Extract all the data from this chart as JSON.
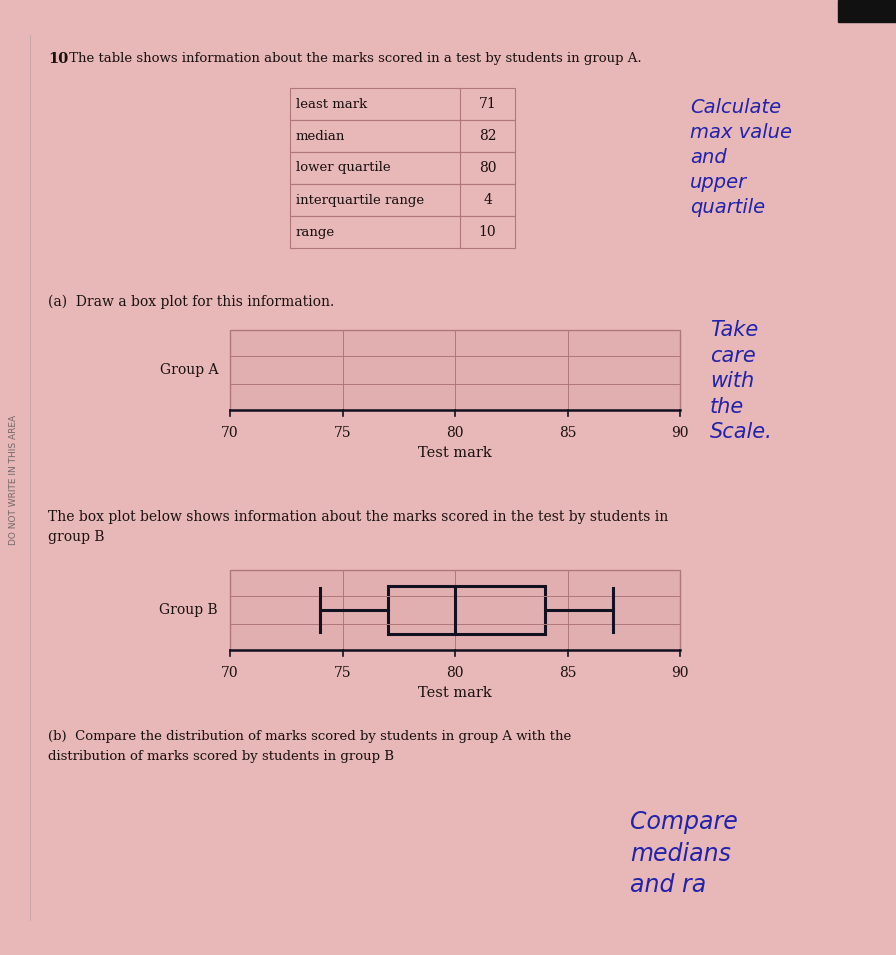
{
  "page_bg": "#e8b8b8",
  "question_number": "10",
  "question_text": " The table shows information about the marks scored in a test by students in group A.",
  "table_data": {
    "rows": [
      [
        "least mark",
        "71"
      ],
      [
        "median",
        "82"
      ],
      [
        "lower quartile",
        "80"
      ],
      [
        "interquartile range",
        "4"
      ],
      [
        "range",
        "10"
      ]
    ]
  },
  "handwritten_note1": "Calculate\nmax value\nand\nupper\nquartile",
  "part_a_text": "(a)  Draw a box plot for this information.",
  "group_a_label": "Group A",
  "group_a_xlabel": "Test mark",
  "group_a_xlim": [
    70,
    90
  ],
  "group_a_xticks": [
    70,
    75,
    80,
    85,
    90
  ],
  "handwritten_note2": "Take\ncare\nwith\nthe\nScale.",
  "group_b_intro_line1": "The box plot below shows information about the marks scored in the test by students in",
  "group_b_intro_line2": "group B",
  "group_b_label": "Group B",
  "group_b_xlabel": "Test mark",
  "group_b_xlim": [
    70,
    90
  ],
  "group_b_xticks": [
    70,
    75,
    80,
    85,
    90
  ],
  "group_b_box": {
    "min": 74,
    "q1": 77,
    "median": 80,
    "q3": 84,
    "max": 87
  },
  "part_b_text_line1": "(b)  Compare the distribution of marks scored by students in group A with the",
  "part_b_text_line2": "distribution of marks scored by students in group B",
  "handwritten_note3": "Compare\nmedians\nand ra",
  "grid_color": "#b07878",
  "box_color": "#111122",
  "text_color": "#1a1010",
  "sidebar_text": "DO NOT WRITE IN THIS AREA",
  "black_rect": true
}
